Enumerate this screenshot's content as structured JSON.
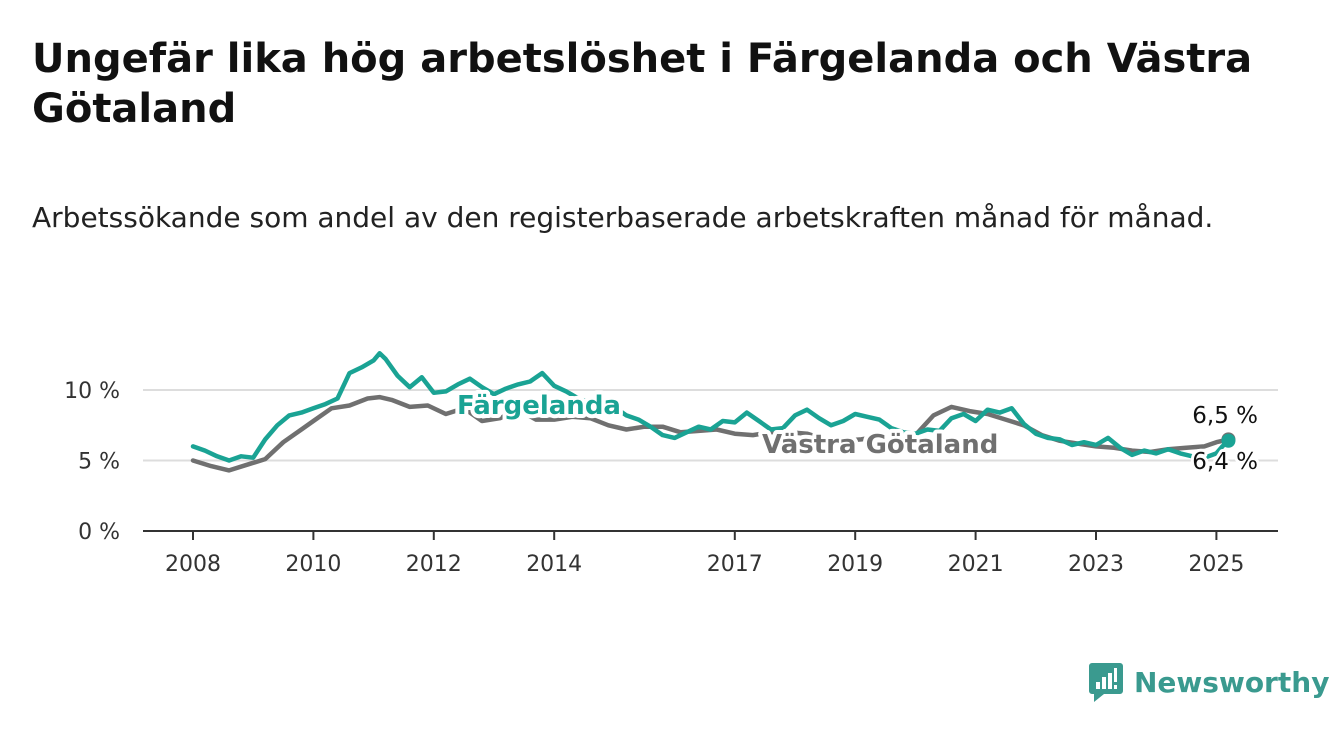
{
  "title": "Ungefär lika hög arbetslöshet i Färgelanda och Västra Götaland",
  "subtitle": "Arbetssökande som andel av den registerbaserade arbetskraften månad för månad.",
  "brand": {
    "name": "Newsworthy"
  },
  "colors": {
    "fargelanda": "#1aa394",
    "vastra_gotaland": "#707070",
    "grid": "#dddddd",
    "axis": "#333333"
  },
  "chart_data": {
    "type": "line",
    "title": "Ungefär lika hög arbetslöshet i Färgelanda och Västra Götaland",
    "subtitle": "Arbetssökande som andel av den registerbaserade arbetskraften månad för månad.",
    "xlabel": "",
    "ylabel": "",
    "xlim": [
      2007.6,
      2026.0
    ],
    "ylim": [
      0,
      10
    ],
    "y_ticks": [
      {
        "value": 0,
        "label": "0 %"
      },
      {
        "value": 5,
        "label": "5 %"
      },
      {
        "value": 10,
        "label": "10 %"
      }
    ],
    "x_ticks": [
      {
        "value": 2008,
        "label": "2008"
      },
      {
        "value": 2010,
        "label": "2010"
      },
      {
        "value": 2012,
        "label": "2012"
      },
      {
        "value": 2014,
        "label": "2014"
      },
      {
        "value": 2017,
        "label": "2017"
      },
      {
        "value": 2019,
        "label": "2019"
      },
      {
        "value": 2021,
        "label": "2021"
      },
      {
        "value": 2023,
        "label": "2023"
      },
      {
        "value": 2025,
        "label": "2025"
      }
    ],
    "grid": "horizontal",
    "legend": "inline labels",
    "series": [
      {
        "name": "Västra Götaland",
        "key": "vastra_gotaland",
        "end_label": "6,5 %",
        "points": [
          [
            2008.0,
            5.0
          ],
          [
            2008.3,
            4.6
          ],
          [
            2008.6,
            4.3
          ],
          [
            2008.9,
            4.7
          ],
          [
            2009.2,
            5.1
          ],
          [
            2009.5,
            6.3
          ],
          [
            2009.8,
            7.2
          ],
          [
            2010.0,
            7.8
          ],
          [
            2010.3,
            8.7
          ],
          [
            2010.6,
            8.9
          ],
          [
            2010.9,
            9.4
          ],
          [
            2011.1,
            9.5
          ],
          [
            2011.3,
            9.3
          ],
          [
            2011.6,
            8.8
          ],
          [
            2011.9,
            8.9
          ],
          [
            2012.2,
            8.3
          ],
          [
            2012.5,
            8.7
          ],
          [
            2012.8,
            7.8
          ],
          [
            2013.1,
            8.0
          ],
          [
            2013.4,
            8.6
          ],
          [
            2013.7,
            7.9
          ],
          [
            2014.0,
            7.9
          ],
          [
            2014.3,
            8.1
          ],
          [
            2014.6,
            8.0
          ],
          [
            2014.9,
            7.5
          ],
          [
            2015.2,
            7.2
          ],
          [
            2015.5,
            7.4
          ],
          [
            2015.8,
            7.4
          ],
          [
            2016.1,
            7.0
          ],
          [
            2016.4,
            7.1
          ],
          [
            2016.7,
            7.2
          ],
          [
            2017.0,
            6.9
          ],
          [
            2017.3,
            6.8
          ],
          [
            2017.6,
            7.0
          ],
          [
            2017.9,
            7.0
          ],
          [
            2018.2,
            6.9
          ],
          [
            2018.5,
            6.5
          ],
          [
            2018.8,
            6.4
          ],
          [
            2019.1,
            6.5
          ],
          [
            2019.4,
            6.7
          ],
          [
            2019.7,
            6.8
          ],
          [
            2020.0,
            6.8
          ],
          [
            2020.3,
            8.2
          ],
          [
            2020.6,
            8.8
          ],
          [
            2020.9,
            8.5
          ],
          [
            2021.2,
            8.3
          ],
          [
            2021.5,
            7.9
          ],
          [
            2021.8,
            7.5
          ],
          [
            2022.1,
            6.8
          ],
          [
            2022.4,
            6.4
          ],
          [
            2022.7,
            6.2
          ],
          [
            2023.0,
            6.0
          ],
          [
            2023.3,
            5.9
          ],
          [
            2023.6,
            5.7
          ],
          [
            2023.9,
            5.6
          ],
          [
            2024.2,
            5.8
          ],
          [
            2024.5,
            5.9
          ],
          [
            2024.8,
            6.0
          ],
          [
            2025.0,
            6.3
          ],
          [
            2025.2,
            6.5
          ]
        ]
      },
      {
        "name": "Färgelanda",
        "key": "fargelanda",
        "end_label": "6,4 %",
        "points": [
          [
            2008.0,
            6.0
          ],
          [
            2008.2,
            5.7
          ],
          [
            2008.4,
            5.3
          ],
          [
            2008.6,
            5.0
          ],
          [
            2008.8,
            5.3
          ],
          [
            2009.0,
            5.2
          ],
          [
            2009.2,
            6.5
          ],
          [
            2009.4,
            7.5
          ],
          [
            2009.6,
            8.2
          ],
          [
            2009.8,
            8.4
          ],
          [
            2010.0,
            8.7
          ],
          [
            2010.2,
            9.0
          ],
          [
            2010.4,
            9.4
          ],
          [
            2010.6,
            11.2
          ],
          [
            2010.8,
            11.6
          ],
          [
            2011.0,
            12.1
          ],
          [
            2011.1,
            12.6
          ],
          [
            2011.2,
            12.2
          ],
          [
            2011.4,
            11.0
          ],
          [
            2011.6,
            10.2
          ],
          [
            2011.8,
            10.9
          ],
          [
            2012.0,
            9.8
          ],
          [
            2012.2,
            9.9
          ],
          [
            2012.4,
            10.4
          ],
          [
            2012.6,
            10.8
          ],
          [
            2012.8,
            10.2
          ],
          [
            2013.0,
            9.7
          ],
          [
            2013.2,
            10.1
          ],
          [
            2013.4,
            10.4
          ],
          [
            2013.6,
            10.6
          ],
          [
            2013.8,
            11.2
          ],
          [
            2014.0,
            10.3
          ],
          [
            2014.2,
            9.9
          ],
          [
            2014.4,
            9.4
          ],
          [
            2014.6,
            9.1
          ],
          [
            2014.8,
            8.9
          ],
          [
            2015.0,
            8.8
          ],
          [
            2015.2,
            8.2
          ],
          [
            2015.4,
            7.9
          ],
          [
            2015.6,
            7.4
          ],
          [
            2015.8,
            6.8
          ],
          [
            2016.0,
            6.6
          ],
          [
            2016.2,
            7.0
          ],
          [
            2016.4,
            7.4
          ],
          [
            2016.6,
            7.2
          ],
          [
            2016.8,
            7.8
          ],
          [
            2017.0,
            7.7
          ],
          [
            2017.2,
            8.4
          ],
          [
            2017.4,
            7.8
          ],
          [
            2017.6,
            7.2
          ],
          [
            2017.8,
            7.3
          ],
          [
            2018.0,
            8.2
          ],
          [
            2018.2,
            8.6
          ],
          [
            2018.4,
            8.0
          ],
          [
            2018.6,
            7.5
          ],
          [
            2018.8,
            7.8
          ],
          [
            2019.0,
            8.3
          ],
          [
            2019.2,
            8.1
          ],
          [
            2019.4,
            7.9
          ],
          [
            2019.6,
            7.3
          ],
          [
            2019.8,
            7.0
          ],
          [
            2020.0,
            6.9
          ],
          [
            2020.2,
            7.2
          ],
          [
            2020.4,
            7.1
          ],
          [
            2020.6,
            8.0
          ],
          [
            2020.8,
            8.3
          ],
          [
            2021.0,
            7.8
          ],
          [
            2021.2,
            8.6
          ],
          [
            2021.4,
            8.4
          ],
          [
            2021.6,
            8.7
          ],
          [
            2021.8,
            7.6
          ],
          [
            2022.0,
            6.9
          ],
          [
            2022.2,
            6.6
          ],
          [
            2022.4,
            6.5
          ],
          [
            2022.6,
            6.1
          ],
          [
            2022.8,
            6.3
          ],
          [
            2023.0,
            6.1
          ],
          [
            2023.2,
            6.6
          ],
          [
            2023.4,
            5.9
          ],
          [
            2023.6,
            5.4
          ],
          [
            2023.8,
            5.7
          ],
          [
            2024.0,
            5.5
          ],
          [
            2024.2,
            5.8
          ],
          [
            2024.4,
            5.5
          ],
          [
            2024.6,
            5.3
          ],
          [
            2024.8,
            5.2
          ],
          [
            2025.0,
            5.5
          ],
          [
            2025.1,
            6.0
          ],
          [
            2025.2,
            6.4
          ]
        ]
      }
    ]
  }
}
